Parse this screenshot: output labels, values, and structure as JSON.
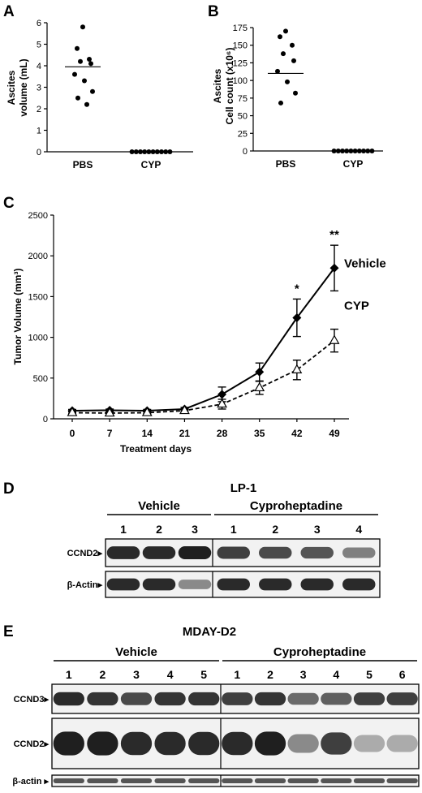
{
  "panels": {
    "A": {
      "letter": "A",
      "chart_data": {
        "type": "scatter",
        "ylabel_line1": "Ascites",
        "ylabel_line2": "volume (mL)",
        "ylim": [
          0,
          6
        ],
        "yticks": [
          0,
          1,
          2,
          3,
          4,
          5,
          6
        ],
        "categories": [
          "PBS",
          "CYP"
        ],
        "groups": [
          {
            "category": "PBS",
            "values": [
              5.8,
              4.8,
              4.3,
              4.2,
              4.1,
              3.6,
              3.3,
              2.8,
              2.5,
              2.2
            ],
            "mean": 3.95
          },
          {
            "category": "CYP",
            "values": [
              0,
              0,
              0,
              0,
              0,
              0,
              0,
              0,
              0,
              0
            ],
            "mean": 0
          }
        ]
      }
    },
    "B": {
      "letter": "B",
      "chart_data": {
        "type": "scatter",
        "ylabel_line1": "Ascites",
        "ylabel_line2": "Cell count (x10⁶)",
        "ylim": [
          0,
          175
        ],
        "yticks": [
          0,
          25,
          50,
          75,
          100,
          125,
          150,
          175
        ],
        "categories": [
          "PBS",
          "CYP"
        ],
        "groups": [
          {
            "category": "PBS",
            "values": [
              170,
              162,
              150,
              138,
              128,
              113,
              98,
              82,
              68
            ],
            "mean": 110
          },
          {
            "category": "CYP",
            "values": [
              0,
              0,
              0,
              0,
              0,
              0,
              0,
              0,
              0,
              0
            ],
            "mean": 0
          }
        ]
      }
    },
    "C": {
      "letter": "C",
      "chart_data": {
        "type": "line",
        "ylabel": "Tumor Volume (mm³)",
        "xlabel": "Treatment days",
        "ylim": [
          0,
          2500
        ],
        "yticks": [
          0,
          500,
          1000,
          1500,
          2000,
          2500
        ],
        "x": [
          0,
          7,
          14,
          21,
          28,
          35,
          42,
          49
        ],
        "series": [
          {
            "name": "Vehicle",
            "style": "solid",
            "marker": "diamond",
            "values": [
              100,
              105,
              100,
              120,
              300,
              575,
              1240,
              1850
            ],
            "errors": [
              15,
              15,
              15,
              20,
              90,
              110,
              230,
              280
            ]
          },
          {
            "name": "CYP",
            "style": "dashed",
            "marker": "triangle",
            "values": [
              75,
              70,
              75,
              100,
              180,
              380,
              600,
              960
            ],
            "errors": [
              10,
              10,
              10,
              20,
              60,
              80,
              120,
              140
            ]
          }
        ],
        "annotations": [
          {
            "x": 42,
            "text": "*"
          },
          {
            "x": 49,
            "text": "**"
          }
        ]
      }
    },
    "D": {
      "letter": "D",
      "title": "LP-1",
      "groups": [
        {
          "label": "Vehicle",
          "lanes": [
            "1",
            "2",
            "3"
          ]
        },
        {
          "label": "Cyproheptadine",
          "lanes": [
            "1",
            "2",
            "3",
            "4"
          ]
        }
      ],
      "blots": [
        {
          "label": "CCND2▸",
          "intensity": [
            0.9,
            0.9,
            0.95,
            0.8,
            0.75,
            0.7,
            0.5
          ]
        },
        {
          "label": "β-Actin▸",
          "intensity": [
            0.9,
            0.9,
            0.45,
            0.9,
            0.9,
            0.9,
            0.9
          ]
        }
      ]
    },
    "E": {
      "letter": "E",
      "title": "MDAY-D2",
      "groups": [
        {
          "label": "Vehicle",
          "lanes": [
            "1",
            "2",
            "3",
            "4",
            "5"
          ]
        },
        {
          "label": "Cyproheptadine",
          "lanes": [
            "1",
            "2",
            "3",
            "4",
            "5",
            "6"
          ]
        }
      ],
      "blots": [
        {
          "label": "CCND3▸",
          "intensity": [
            0.9,
            0.85,
            0.75,
            0.85,
            0.85,
            0.8,
            0.85,
            0.6,
            0.65,
            0.8,
            0.8
          ]
        },
        {
          "label": "CCND2▸",
          "intensity": [
            0.95,
            0.95,
            0.9,
            0.9,
            0.9,
            0.9,
            0.95,
            0.45,
            0.8,
            0.3,
            0.3
          ]
        },
        {
          "label": "β-actin ▸",
          "intensity": [
            0.7,
            0.7,
            0.7,
            0.7,
            0.7,
            0.7,
            0.7,
            0.7,
            0.7,
            0.7,
            0.7
          ]
        }
      ]
    }
  }
}
